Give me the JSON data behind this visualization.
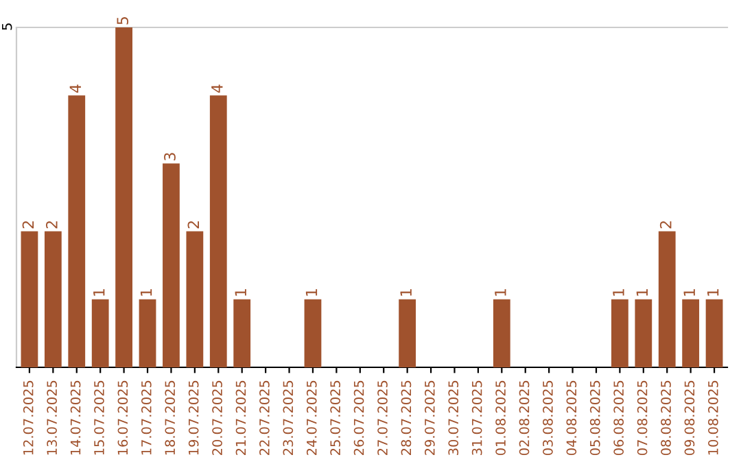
{
  "chart_data": {
    "type": "bar",
    "categories": [
      "12.07.2025",
      "13.07.2025",
      "14.07.2025",
      "15.07.2025",
      "16.07.2025",
      "17.07.2025",
      "18.07.2025",
      "19.07.2025",
      "20.07.2025",
      "21.07.2025",
      "22.07.2025",
      "23.07.2025",
      "24.07.2025",
      "25.07.2025",
      "26.07.2025",
      "27.07.2025",
      "28.07.2025",
      "29.07.2025",
      "30.07.2025",
      "31.07.2025",
      "01.08.2025",
      "02.08.2025",
      "03.08.2025",
      "04.08.2025",
      "05.08.2025",
      "06.08.2025",
      "07.08.2025",
      "08.08.2025",
      "09.08.2025",
      "10.08.2025"
    ],
    "values": [
      2,
      2,
      4,
      1,
      5,
      1,
      3,
      2,
      4,
      1,
      0,
      0,
      1,
      0,
      0,
      0,
      1,
      0,
      0,
      0,
      1,
      0,
      0,
      0,
      0,
      1,
      1,
      2,
      1,
      1
    ],
    "value_labels": [
      "2",
      "2",
      "4",
      "1",
      "5",
      "1",
      "3",
      "2",
      "4",
      "1",
      null,
      null,
      "1",
      null,
      null,
      null,
      "1",
      null,
      null,
      null,
      "1",
      null,
      null,
      null,
      null,
      "1",
      "1",
      "2",
      "1",
      "1"
    ],
    "color": "#a0522d",
    "ylim": [
      0,
      5
    ],
    "yticks": [
      5
    ],
    "legend": false
  }
}
